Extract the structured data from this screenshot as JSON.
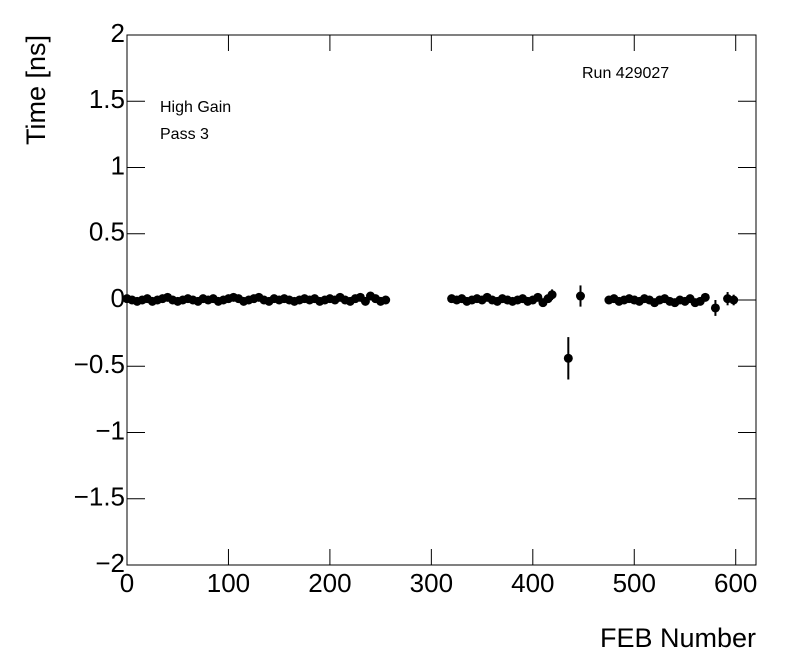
{
  "chart_data": {
    "type": "scatter",
    "x_label": "FEB Number",
    "y_label": "Time [ns]",
    "annotations": [
      "High Gain",
      "Pass 3",
      "Run 429027"
    ],
    "xlim": [
      0,
      620
    ],
    "ylim": [
      -2,
      2
    ],
    "xticks": [
      0,
      100,
      200,
      300,
      400,
      500,
      600
    ],
    "yticks": [
      {
        "value": -2,
        "label": "−2"
      },
      {
        "value": -1.5,
        "label": "−1.5"
      },
      {
        "value": -1,
        "label": "−1"
      },
      {
        "value": -0.5,
        "label": "−0.5"
      },
      0,
      0.5,
      1,
      1.5,
      2
    ],
    "color": "#000000",
    "x": [
      0,
      5,
      10,
      15,
      20,
      25,
      30,
      35,
      40,
      45,
      50,
      55,
      60,
      65,
      70,
      75,
      80,
      85,
      90,
      95,
      100,
      105,
      110,
      115,
      120,
      125,
      130,
      135,
      140,
      145,
      150,
      155,
      160,
      165,
      170,
      175,
      180,
      185,
      190,
      195,
      200,
      205,
      210,
      215,
      220,
      225,
      230,
      235,
      240,
      245,
      250,
      255,
      320,
      325,
      330,
      335,
      340,
      345,
      350,
      355,
      360,
      365,
      370,
      375,
      380,
      385,
      390,
      395,
      400,
      405,
      410,
      415,
      419,
      435,
      447,
      475,
      480,
      485,
      490,
      495,
      500,
      505,
      510,
      515,
      520,
      525,
      530,
      535,
      540,
      545,
      550,
      555,
      560,
      565,
      570,
      580,
      592,
      598
    ],
    "values": [
      0.01,
      0,
      -0.01,
      0,
      0.01,
      -0.01,
      0,
      0.01,
      0.02,
      0,
      -0.01,
      0,
      0.01,
      0,
      -0.01,
      0.01,
      0,
      0.01,
      -0.01,
      0,
      0.01,
      0.02,
      0.01,
      -0.01,
      0,
      0.01,
      0.02,
      0,
      -0.01,
      0.01,
      0,
      0.01,
      0,
      -0.01,
      0,
      0.01,
      0,
      0.01,
      -0.01,
      0,
      0.01,
      0,
      0.02,
      0,
      -0.01,
      0.01,
      0.02,
      -0.01,
      0.03,
      0.01,
      -0.01,
      0,
      0.01,
      0,
      0.01,
      -0.01,
      0,
      0.01,
      0,
      0.02,
      0,
      -0.01,
      0.01,
      0,
      -0.01,
      0,
      0.01,
      -0.01,
      0,
      0.02,
      -0.02,
      0.01,
      0.04,
      -0.44,
      0.03,
      0,
      0.01,
      -0.01,
      0,
      0.01,
      0,
      -0.01,
      0.01,
      0,
      -0.02,
      0,
      0.01,
      -0.01,
      -0.02,
      0,
      -0.01,
      0.01,
      -0.02,
      -0.01,
      0.02,
      -0.06,
      0.01,
      0
    ],
    "errors": [
      0.02,
      0.02,
      0.02,
      0.02,
      0.02,
      0.02,
      0.02,
      0.02,
      0.02,
      0.02,
      0.02,
      0.02,
      0.02,
      0.02,
      0.02,
      0.02,
      0.02,
      0.02,
      0.02,
      0.02,
      0.03,
      0.02,
      0.02,
      0.02,
      0.02,
      0.02,
      0.02,
      0.02,
      0.02,
      0.02,
      0.02,
      0.02,
      0.02,
      0.02,
      0.02,
      0.02,
      0.02,
      0.02,
      0.02,
      0.02,
      0.02,
      0.02,
      0.02,
      0.02,
      0.02,
      0.02,
      0.03,
      0.03,
      0.03,
      0.02,
      0.02,
      0.02,
      0.02,
      0.02,
      0.02,
      0.02,
      0.02,
      0.02,
      0.02,
      0.02,
      0.02,
      0.02,
      0.02,
      0.02,
      0.02,
      0.02,
      0.02,
      0.02,
      0.02,
      0.03,
      0.03,
      0.02,
      0.04,
      0.16,
      0.08,
      0.02,
      0.02,
      0.02,
      0.02,
      0.02,
      0.02,
      0.02,
      0.02,
      0.02,
      0.02,
      0.02,
      0.02,
      0.03,
      0.02,
      0.03,
      0.03,
      0.02,
      0.03,
      0.02,
      0.03,
      0.06,
      0.05,
      0.04
    ]
  }
}
